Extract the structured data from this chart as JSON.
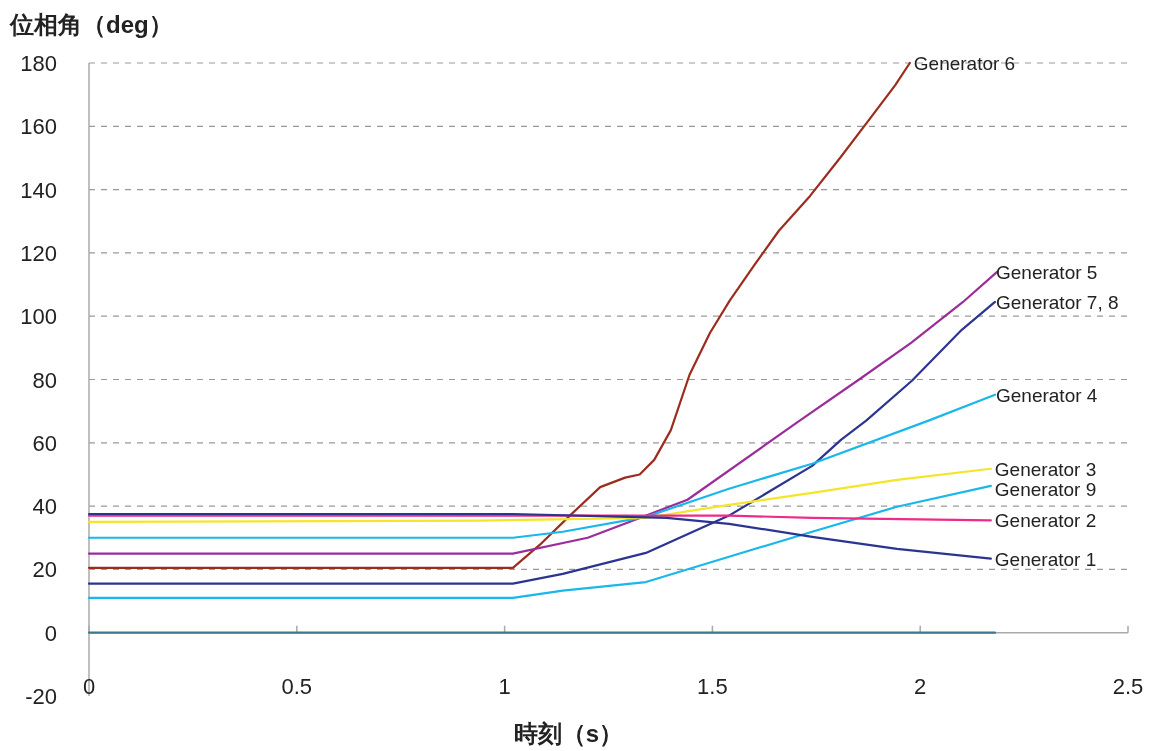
{
  "chart_data": {
    "type": "line",
    "xlabel": "時刻（s）",
    "ylabel": "位相角（deg）",
    "xlim": [
      0,
      2.5
    ],
    "xticks": [
      0,
      0.5,
      1,
      1.5,
      2,
      2.5
    ],
    "ylim": [
      -20,
      180
    ],
    "yticks": [
      -20,
      0,
      20,
      40,
      60,
      80,
      100,
      120,
      140,
      160,
      180
    ],
    "grid": "y",
    "legend": false,
    "marker": "none",
    "line_style": "solid",
    "series": [
      {
        "name": "Generator 6",
        "color": "#9b2d1f",
        "x": [
          0,
          1.02,
          1.085,
          1.157,
          1.23,
          1.29,
          1.325,
          1.36,
          1.4,
          1.445,
          1.494,
          1.542,
          1.6,
          1.66,
          1.735,
          1.807,
          1.88,
          1.94,
          1.975
        ],
        "values": [
          20.5,
          20.5,
          27.8,
          37,
          46,
          49,
          50,
          54.6,
          64,
          81.5,
          94.7,
          105,
          116,
          127,
          138,
          150,
          162.6,
          173,
          180
        ]
      },
      {
        "name": "Generator 5",
        "color": "#9b2d9b",
        "x": [
          0,
          1.02,
          1.2,
          1.3,
          1.44,
          1.71,
          1.853,
          1.978,
          2.103,
          2.185
        ],
        "values": [
          25,
          25,
          30,
          35,
          42,
          67,
          80,
          91.6,
          104.5,
          114
        ]
      },
      {
        "name": "Generator 7, 8",
        "color": "#2b3590",
        "x": [
          0,
          1.02,
          1.14,
          1.34,
          1.54,
          1.74,
          1.81,
          1.87,
          1.98,
          2.1,
          2.18
        ],
        "values": [
          15.5,
          15.5,
          18.6,
          25.2,
          37,
          52.7,
          61,
          67,
          79.6,
          95.7,
          104.5
        ]
      },
      {
        "name": "Generator 4",
        "color": "#1ab8ea",
        "x": [
          0,
          1.02,
          1.14,
          1.34,
          1.54,
          1.74,
          2.02,
          2.18
        ],
        "values": [
          30,
          30,
          31.9,
          36.6,
          45.5,
          53.4,
          67,
          75.2
        ]
      },
      {
        "name": "Generator 3",
        "color": "#f5e52a",
        "x": [
          0,
          0.94,
          1.34,
          1.54,
          1.74,
          1.944,
          2.17
        ],
        "values": [
          35,
          35.4,
          36.3,
          40.4,
          44.2,
          48.3,
          51.8
        ]
      },
      {
        "name": "Generator 9",
        "color": "#1ab8ea",
        "x": [
          0,
          1.02,
          1.14,
          1.34,
          1.54,
          1.74,
          1.944,
          2.17
        ],
        "values": [
          11,
          11,
          13.3,
          16,
          24,
          31.9,
          39.8,
          46.4
        ]
      },
      {
        "name": "Generator 2",
        "color": "#ee2a8a",
        "x": [
          0,
          1.02,
          1.54,
          1.74,
          2.17
        ],
        "values": [
          37,
          37,
          37,
          36.3,
          35.5
        ]
      },
      {
        "name": "Generator 1",
        "color": "#2b3590",
        "x": [
          0,
          1.02,
          1.39,
          1.54,
          1.74,
          1.944,
          2.17
        ],
        "values": [
          37.5,
          37.5,
          36.3,
          34.4,
          30.3,
          26.5,
          23.4
        ]
      },
      {
        "color": "#3a7a8a",
        "x": [
          0,
          2.18
        ],
        "values": [
          0,
          0
        ]
      }
    ]
  }
}
